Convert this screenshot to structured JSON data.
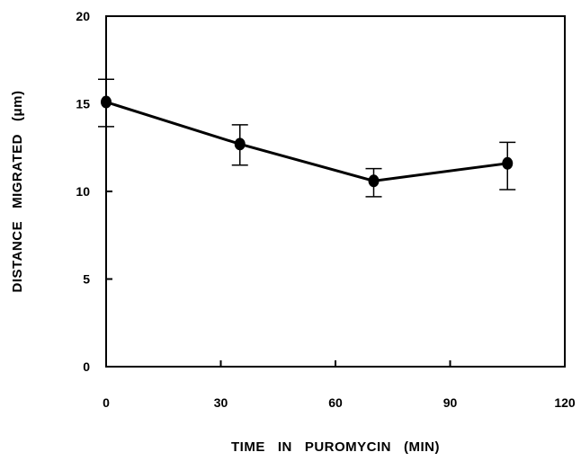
{
  "chart_data": {
    "type": "line",
    "title": "",
    "xlabel": "TIME   IN   PUROMYCIN   (MIN)",
    "ylabel": "DISTANCE   MIGRATED   (μm)",
    "xlim": [
      0,
      120
    ],
    "ylim": [
      0,
      20
    ],
    "x_ticks": [
      "0",
      "30",
      "60",
      "90",
      "120"
    ],
    "y_ticks": [
      "0",
      "5",
      "10",
      "15",
      "20"
    ],
    "grid": false,
    "legend": "none",
    "colors": {
      "line": "#000000",
      "marker": "#000000"
    },
    "series": [
      {
        "points": [
          {
            "x": 0,
            "y": 15.1,
            "err_low": 13.7,
            "err_high": 16.4
          },
          {
            "x": 35,
            "y": 12.7,
            "err_low": 11.5,
            "err_high": 13.8
          },
          {
            "x": 70,
            "y": 10.6,
            "err_low": 9.7,
            "err_high": 11.3
          },
          {
            "x": 105,
            "y": 11.6,
            "err_low": 10.1,
            "err_high": 12.8
          }
        ]
      }
    ]
  }
}
